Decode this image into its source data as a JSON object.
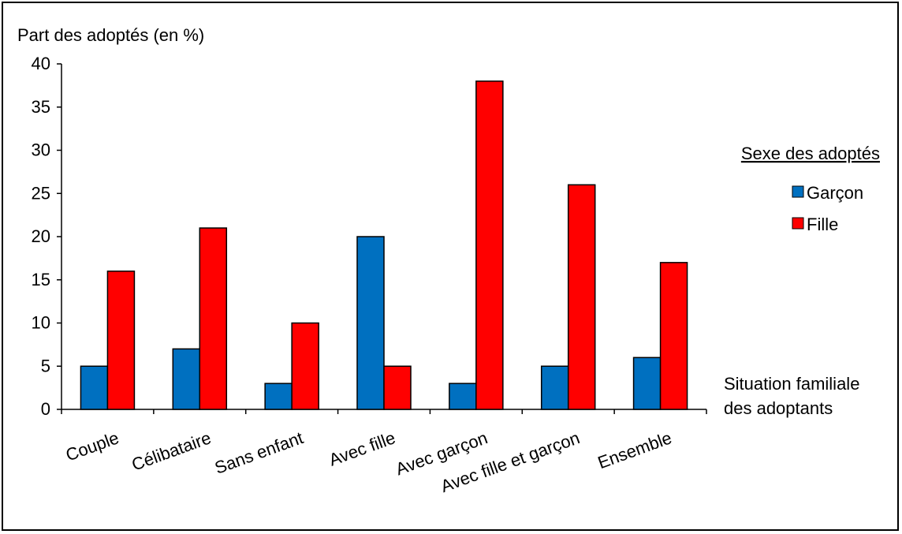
{
  "chart_data": {
    "type": "bar",
    "ylabel": "Part des adoptés (en %)",
    "xlabel_line1": "Situation familiale",
    "xlabel_line2": "des adoptants",
    "legend_title": "Sexe des adoptés",
    "legend_position": "right",
    "ylim": [
      0,
      40
    ],
    "yticks": [
      0,
      5,
      10,
      15,
      20,
      25,
      30,
      35,
      40
    ],
    "grid": false,
    "categories": [
      "Couple",
      "Célibataire",
      "Sans enfant",
      "Avec fille",
      "Avec garçon",
      "Avec fille et garçon",
      "Ensemble"
    ],
    "series": [
      {
        "name": "Garçon",
        "values": [
          5,
          7,
          3,
          20,
          3,
          5,
          6
        ],
        "color": "#0070C0"
      },
      {
        "name": "Fille",
        "values": [
          16,
          21,
          10,
          5,
          38,
          26,
          17
        ],
        "color": "#FF0000"
      }
    ]
  }
}
